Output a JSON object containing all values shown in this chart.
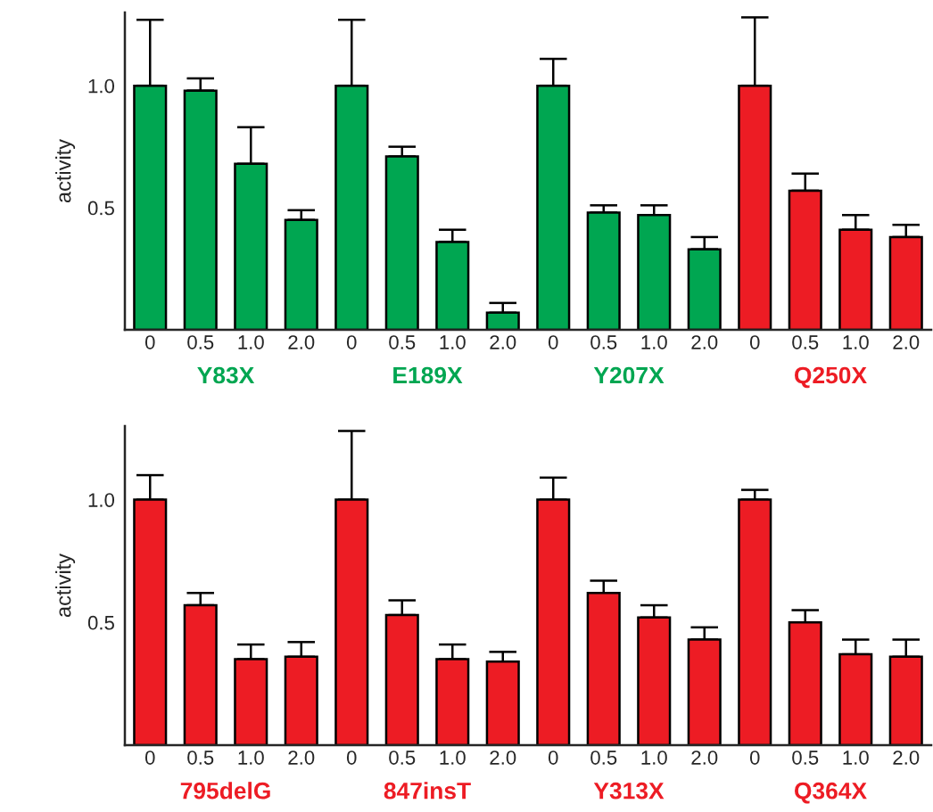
{
  "chart_data": [
    {
      "type": "bar",
      "ylabel": "activity",
      "categories": [
        "0",
        "0.5",
        "1.0",
        "2.0",
        "0",
        "0.5",
        "1.0",
        "2.0",
        "0",
        "0.5",
        "1.0",
        "2.0",
        "0",
        "0.5",
        "1.0",
        "2.0"
      ],
      "ylim": [
        0,
        1.3
      ],
      "yticks": [
        0.5,
        {
          "value": 1.0,
          "label": "1.0"
        }
      ],
      "series": [
        {
          "name": "Y83X",
          "color": "#00a651",
          "values": [
            1.0,
            0.98,
            0.68,
            0.45,
            null,
            null,
            null,
            null,
            null,
            null,
            null,
            null,
            null,
            null,
            null,
            null
          ],
          "errors": [
            [
              1.0,
              1.27
            ],
            [
              0.98,
              1.03
            ],
            [
              0.68,
              0.83
            ],
            [
              0.45,
              0.49
            ],
            null,
            null,
            null,
            null,
            null,
            null,
            null,
            null,
            null,
            null,
            null,
            null
          ]
        },
        {
          "name": "E189X",
          "color": "#00a651",
          "values": [
            null,
            null,
            null,
            null,
            1.0,
            0.71,
            0.36,
            0.07,
            null,
            null,
            null,
            null,
            null,
            null,
            null,
            null
          ],
          "errors": [
            null,
            null,
            null,
            null,
            [
              1.0,
              1.27
            ],
            [
              0.71,
              0.75
            ],
            [
              0.36,
              0.41
            ],
            [
              0.07,
              0.11
            ],
            null,
            null,
            null,
            null,
            null,
            null,
            null,
            null
          ]
        },
        {
          "name": "Y207X",
          "color": "#00a651",
          "values": [
            null,
            null,
            null,
            null,
            null,
            null,
            null,
            null,
            1.0,
            0.48,
            0.47,
            0.33,
            null,
            null,
            null,
            null
          ],
          "errors": [
            null,
            null,
            null,
            null,
            null,
            null,
            null,
            null,
            [
              1.0,
              1.11
            ],
            [
              0.48,
              0.51
            ],
            [
              0.47,
              0.51
            ],
            [
              0.33,
              0.38
            ],
            null,
            null,
            null,
            null
          ]
        },
        {
          "name": "Q250X",
          "color": "#ed1c24",
          "values": [
            null,
            null,
            null,
            null,
            null,
            null,
            null,
            null,
            null,
            null,
            null,
            null,
            1.0,
            0.57,
            0.41,
            0.38
          ],
          "errors": [
            null,
            null,
            null,
            null,
            null,
            null,
            null,
            null,
            null,
            null,
            null,
            null,
            [
              1.0,
              1.28
            ],
            [
              0.57,
              0.64
            ],
            [
              0.41,
              0.47
            ],
            [
              0.38,
              0.43
            ]
          ]
        }
      ]
    },
    {
      "type": "bar",
      "ylabel": "activity",
      "categories": [
        "0",
        "0.5",
        "1.0",
        "2.0",
        "0",
        "0.5",
        "1.0",
        "2.0",
        "0",
        "0.5",
        "1.0",
        "2.0",
        "0",
        "0.5",
        "1.0",
        "2.0"
      ],
      "ylim": [
        0,
        1.3
      ],
      "yticks": [
        0.5,
        {
          "value": 1.0,
          "label": "1.0"
        }
      ],
      "series": [
        {
          "name": "795delG",
          "color": "#ed1c24",
          "values": [
            1.0,
            0.57,
            0.35,
            0.36,
            null,
            null,
            null,
            null,
            null,
            null,
            null,
            null,
            null,
            null,
            null,
            null
          ],
          "errors": [
            [
              1.0,
              1.1
            ],
            [
              0.57,
              0.62
            ],
            [
              0.35,
              0.41
            ],
            [
              0.36,
              0.42
            ],
            null,
            null,
            null,
            null,
            null,
            null,
            null,
            null,
            null,
            null,
            null,
            null
          ]
        },
        {
          "name": "847insT",
          "color": "#ed1c24",
          "values": [
            null,
            null,
            null,
            null,
            1.0,
            0.53,
            0.35,
            0.34,
            null,
            null,
            null,
            null,
            null,
            null,
            null,
            null
          ],
          "errors": [
            null,
            null,
            null,
            null,
            [
              1.0,
              1.28
            ],
            [
              0.53,
              0.59
            ],
            [
              0.35,
              0.41
            ],
            [
              0.34,
              0.38
            ],
            null,
            null,
            null,
            null,
            null,
            null,
            null,
            null
          ]
        },
        {
          "name": "Y313X",
          "color": "#ed1c24",
          "values": [
            null,
            null,
            null,
            null,
            null,
            null,
            null,
            null,
            1.0,
            0.62,
            0.52,
            0.43,
            null,
            null,
            null,
            null
          ],
          "errors": [
            null,
            null,
            null,
            null,
            null,
            null,
            null,
            null,
            [
              1.0,
              1.09
            ],
            [
              0.62,
              0.67
            ],
            [
              0.52,
              0.57
            ],
            [
              0.43,
              0.48
            ],
            null,
            null,
            null,
            null
          ]
        },
        {
          "name": "Q364X",
          "color": "#ed1c24",
          "values": [
            null,
            null,
            null,
            null,
            null,
            null,
            null,
            null,
            null,
            null,
            null,
            null,
            1.0,
            0.5,
            0.37,
            0.36
          ],
          "errors": [
            null,
            null,
            null,
            null,
            null,
            null,
            null,
            null,
            null,
            null,
            null,
            null,
            [
              1.0,
              1.04
            ],
            [
              0.5,
              0.55
            ],
            [
              0.37,
              0.43
            ],
            [
              0.36,
              0.43
            ]
          ]
        }
      ]
    }
  ]
}
